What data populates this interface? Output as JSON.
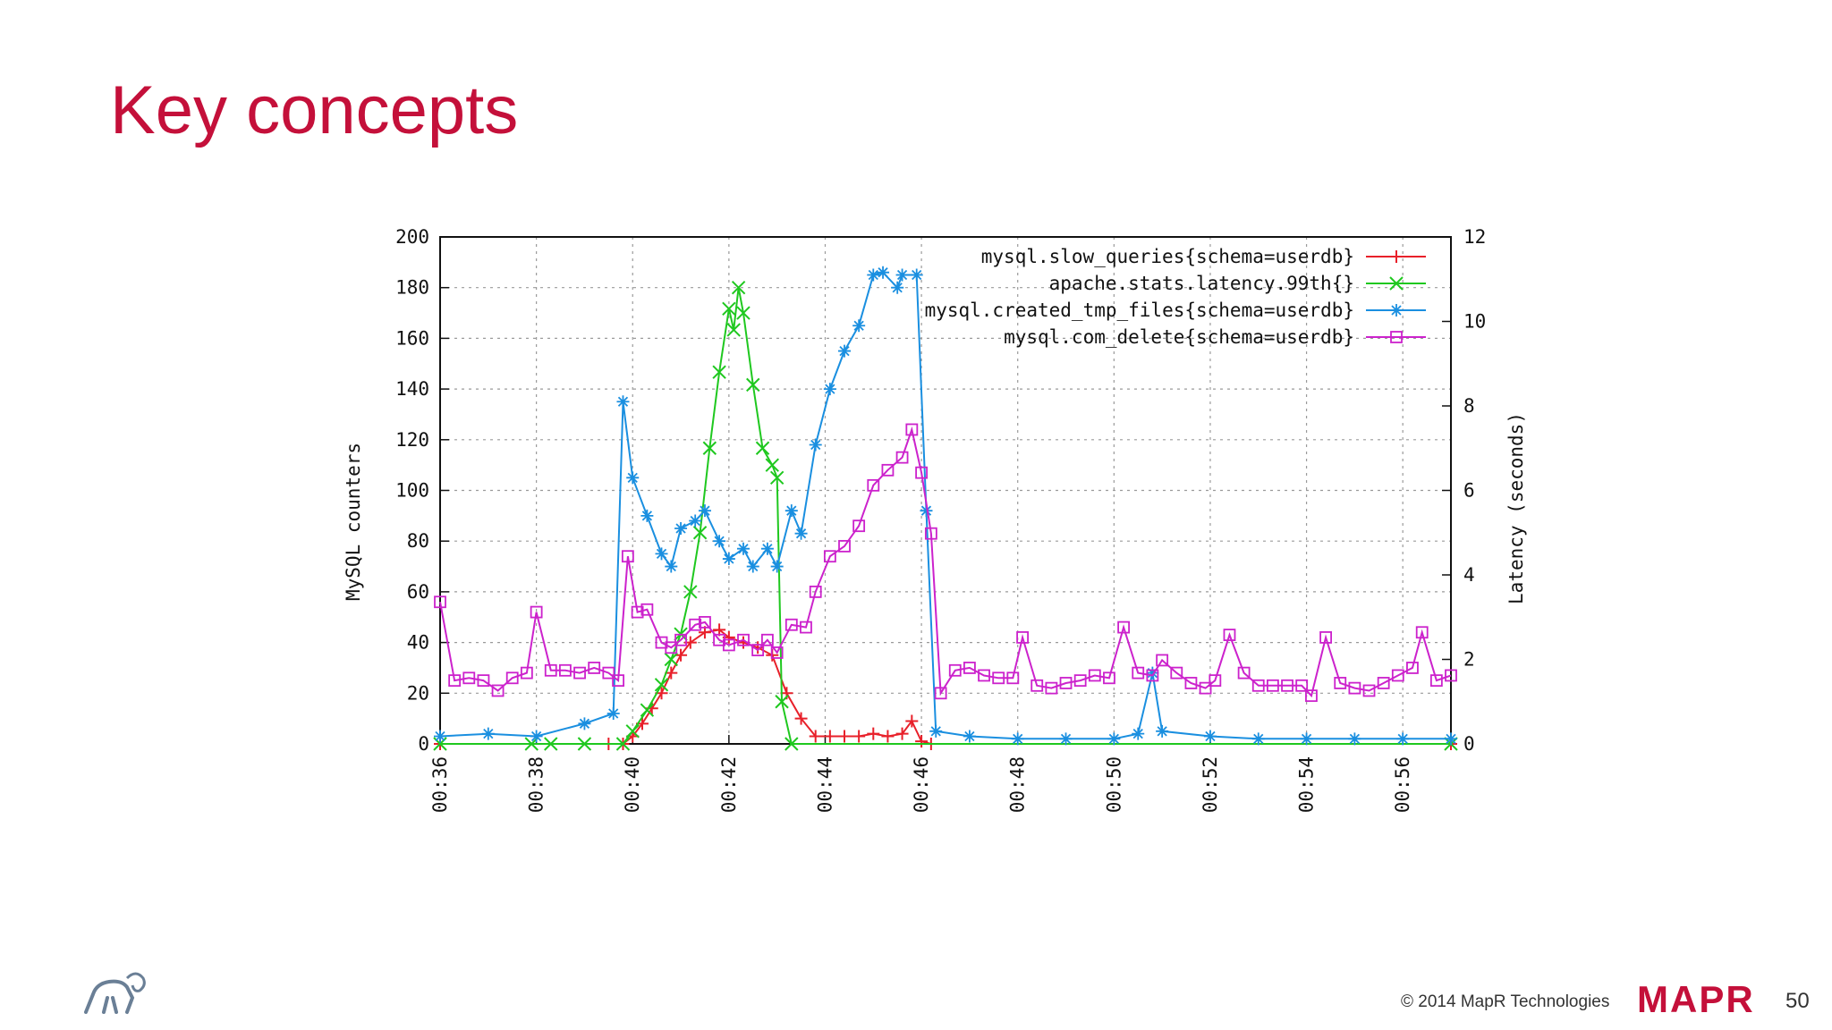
{
  "slide": {
    "title": "Key concepts",
    "copyright": "© 2014 MapR Technologies",
    "logo_text": "MAPR",
    "page_number": "50"
  },
  "colors": {
    "title": "#c4103a",
    "slow_queries": "#e8202a",
    "latency": "#1fc81f",
    "tmp_files": "#1a8fe0",
    "com_delete": "#cc22cc",
    "logo": "#c4103a"
  },
  "chart_data": {
    "type": "line",
    "ylabel": "MySQL counters",
    "y2label": "Latency (seconds)",
    "ylim": [
      0,
      200
    ],
    "y2lim": [
      0,
      12
    ],
    "yticks": [
      "0",
      "20",
      "40",
      "60",
      "80",
      "100",
      "120",
      "140",
      "160",
      "180",
      "200"
    ],
    "y2ticks": [
      "0",
      "2",
      "4",
      "6",
      "8",
      "10",
      "12"
    ],
    "xlim": [
      "00:36",
      "00:57"
    ],
    "xticks": [
      "00:36",
      "00:38",
      "00:40",
      "00:42",
      "00:44",
      "00:46",
      "00:48",
      "00:50",
      "00:52",
      "00:54",
      "00:56"
    ],
    "grid": true,
    "legend": "top-right",
    "series": [
      {
        "name": "mysql.slow_queries{schema=userdb}",
        "axis": "left",
        "marker": "plus",
        "points": [
          [
            "00:36",
            0
          ],
          [
            "00:39.5",
            0
          ],
          [
            "00:39.8",
            0
          ],
          [
            "00:40",
            3
          ],
          [
            "00:40.2",
            8
          ],
          [
            "00:40.4",
            14
          ],
          [
            "00:40.6",
            20
          ],
          [
            "00:40.8",
            28
          ],
          [
            "00:41",
            35
          ],
          [
            "00:41.2",
            40
          ],
          [
            "00:41.5",
            44
          ],
          [
            "00:41.8",
            45
          ],
          [
            "00:42",
            42
          ],
          [
            "00:42.3",
            40
          ],
          [
            "00:42.6",
            38
          ],
          [
            "00:42.9",
            35
          ],
          [
            "00:43.2",
            20
          ],
          [
            "00:43.5",
            10
          ],
          [
            "00:43.8",
            3
          ],
          [
            "00:44.1",
            3
          ],
          [
            "00:44.4",
            3
          ],
          [
            "00:44.7",
            3
          ],
          [
            "00:45",
            4
          ],
          [
            "00:45.3",
            3
          ],
          [
            "00:45.6",
            4
          ],
          [
            "00:45.8",
            9
          ],
          [
            "00:46",
            1
          ],
          [
            "00:46.2",
            0
          ],
          [
            "00:57",
            0
          ]
        ]
      },
      {
        "name": "apache.stats.latency.99th{}",
        "axis": "right",
        "marker": "cross",
        "points": [
          [
            "00:36",
            0
          ],
          [
            "00:37.9",
            0
          ],
          [
            "00:38.3",
            0
          ],
          [
            "00:39",
            0
          ],
          [
            "00:39.8",
            0
          ],
          [
            "00:40",
            0.3
          ],
          [
            "00:40.3",
            0.8
          ],
          [
            "00:40.6",
            1.4
          ],
          [
            "00:40.8",
            2
          ],
          [
            "00:41",
            2.6
          ],
          [
            "00:41.2",
            3.6
          ],
          [
            "00:41.4",
            5
          ],
          [
            "00:41.6",
            7
          ],
          [
            "00:41.8",
            8.8
          ],
          [
            "00:42",
            10.3
          ],
          [
            "00:42.1",
            9.8
          ],
          [
            "00:42.2",
            10.8
          ],
          [
            "00:42.3",
            10.2
          ],
          [
            "00:42.5",
            8.5
          ],
          [
            "00:42.7",
            7
          ],
          [
            "00:42.9",
            6.6
          ],
          [
            "00:43",
            6.3
          ],
          [
            "00:43.1",
            1
          ],
          [
            "00:43.3",
            0
          ],
          [
            "00:57",
            0
          ]
        ]
      },
      {
        "name": "mysql.created_tmp_files{schema=userdb}",
        "axis": "left",
        "marker": "star",
        "points": [
          [
            "00:36",
            3
          ],
          [
            "00:37",
            4
          ],
          [
            "00:38",
            3
          ],
          [
            "00:39",
            8
          ],
          [
            "00:39.6",
            12
          ],
          [
            "00:39.8",
            135
          ],
          [
            "00:40",
            105
          ],
          [
            "00:40.3",
            90
          ],
          [
            "00:40.6",
            75
          ],
          [
            "00:40.8",
            70
          ],
          [
            "00:41",
            85
          ],
          [
            "00:41.3",
            88
          ],
          [
            "00:41.5",
            92
          ],
          [
            "00:41.8",
            80
          ],
          [
            "00:42",
            73
          ],
          [
            "00:42.3",
            77
          ],
          [
            "00:42.5",
            70
          ],
          [
            "00:42.8",
            77
          ],
          [
            "00:43",
            70
          ],
          [
            "00:43.3",
            92
          ],
          [
            "00:43.5",
            83
          ],
          [
            "00:43.8",
            118
          ],
          [
            "00:44.1",
            140
          ],
          [
            "00:44.4",
            155
          ],
          [
            "00:44.7",
            165
          ],
          [
            "00:45",
            185
          ],
          [
            "00:45.2",
            186
          ],
          [
            "00:45.5",
            180
          ],
          [
            "00:45.6",
            185
          ],
          [
            "00:45.9",
            185
          ],
          [
            "00:46.1",
            92
          ],
          [
            "00:46.3",
            5
          ],
          [
            "00:47",
            3
          ],
          [
            "00:48",
            2
          ],
          [
            "00:49",
            2
          ],
          [
            "00:50",
            2
          ],
          [
            "00:50.5",
            4
          ],
          [
            "00:50.8",
            28
          ],
          [
            "00:51",
            5
          ],
          [
            "00:52",
            3
          ],
          [
            "00:53",
            2
          ],
          [
            "00:54",
            2
          ],
          [
            "00:55",
            2
          ],
          [
            "00:56",
            2
          ],
          [
            "00:57",
            2
          ]
        ]
      },
      {
        "name": "mysql.com_delete{schema=userdb}",
        "axis": "left",
        "marker": "square",
        "points": [
          [
            "00:36",
            56
          ],
          [
            "00:36.3",
            25
          ],
          [
            "00:36.6",
            26
          ],
          [
            "00:36.9",
            25
          ],
          [
            "00:37.2",
            21
          ],
          [
            "00:37.5",
            26
          ],
          [
            "00:37.8",
            28
          ],
          [
            "00:38",
            52
          ],
          [
            "00:38.3",
            29
          ],
          [
            "00:38.6",
            29
          ],
          [
            "00:38.9",
            28
          ],
          [
            "00:39.2",
            30
          ],
          [
            "00:39.5",
            28
          ],
          [
            "00:39.7",
            25
          ],
          [
            "00:39.9",
            74
          ],
          [
            "00:40.1",
            52
          ],
          [
            "00:40.3",
            53
          ],
          [
            "00:40.6",
            40
          ],
          [
            "00:40.8",
            38
          ],
          [
            "00:41",
            41
          ],
          [
            "00:41.3",
            47
          ],
          [
            "00:41.5",
            48
          ],
          [
            "00:41.8",
            41
          ],
          [
            "00:42",
            39
          ],
          [
            "00:42.3",
            41
          ],
          [
            "00:42.6",
            37
          ],
          [
            "00:42.8",
            41
          ],
          [
            "00:43",
            36
          ],
          [
            "00:43.3",
            47
          ],
          [
            "00:43.6",
            46
          ],
          [
            "00:43.8",
            60
          ],
          [
            "00:44.1",
            74
          ],
          [
            "00:44.4",
            78
          ],
          [
            "00:44.7",
            86
          ],
          [
            "00:45",
            102
          ],
          [
            "00:45.3",
            108
          ],
          [
            "00:45.6",
            113
          ],
          [
            "00:45.8",
            124
          ],
          [
            "00:46",
            107
          ],
          [
            "00:46.2",
            83
          ],
          [
            "00:46.4",
            20
          ],
          [
            "00:46.7",
            29
          ],
          [
            "00:47",
            30
          ],
          [
            "00:47.3",
            27
          ],
          [
            "00:47.6",
            26
          ],
          [
            "00:47.9",
            26
          ],
          [
            "00:48.1",
            42
          ],
          [
            "00:48.4",
            23
          ],
          [
            "00:48.7",
            22
          ],
          [
            "00:49",
            24
          ],
          [
            "00:49.3",
            25
          ],
          [
            "00:49.6",
            27
          ],
          [
            "00:49.9",
            26
          ],
          [
            "00:50.2",
            46
          ],
          [
            "00:50.5",
            28
          ],
          [
            "00:50.8",
            27
          ],
          [
            "00:51",
            33
          ],
          [
            "00:51.3",
            28
          ],
          [
            "00:51.6",
            24
          ],
          [
            "00:51.9",
            22
          ],
          [
            "00:52.1",
            25
          ],
          [
            "00:52.4",
            43
          ],
          [
            "00:52.7",
            28
          ],
          [
            "00:53",
            23
          ],
          [
            "00:53.3",
            23
          ],
          [
            "00:53.6",
            23
          ],
          [
            "00:53.9",
            23
          ],
          [
            "00:54.1",
            19
          ],
          [
            "00:54.4",
            42
          ],
          [
            "00:54.7",
            24
          ],
          [
            "00:55",
            22
          ],
          [
            "00:55.3",
            21
          ],
          [
            "00:55.6",
            24
          ],
          [
            "00:55.9",
            27
          ],
          [
            "00:56.2",
            30
          ],
          [
            "00:56.4",
            44
          ],
          [
            "00:56.7",
            25
          ],
          [
            "00:57",
            27
          ]
        ]
      }
    ]
  }
}
